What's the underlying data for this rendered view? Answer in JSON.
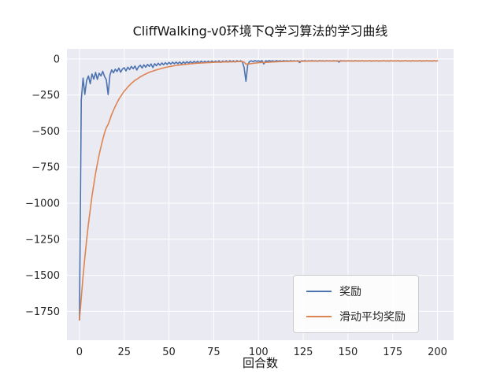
{
  "chart": {
    "title": "CliffWalking-v0环境下Q学习算法的学习曲线",
    "xlabel": "回合数"
  },
  "legend": {
    "items": [
      {
        "label": "奖励",
        "color": "#4C72B0"
      },
      {
        "label": "滑动平均奖励",
        "color": "#DD8452"
      }
    ]
  },
  "chart_data": {
    "type": "line",
    "title": "CliffWalking-v0环境下Q学习算法的学习曲线",
    "xlabel": "回合数",
    "ylabel": "",
    "xlim": [
      -7,
      209
    ],
    "ylim": [
      -1950,
      70
    ],
    "xticks": [
      0,
      25,
      50,
      75,
      100,
      125,
      150,
      175,
      200
    ],
    "xtick_labels": [
      "0",
      "25",
      "50",
      "75",
      "100",
      "125",
      "150",
      "175",
      "200"
    ],
    "yticks": [
      0,
      -250,
      -500,
      -750,
      -1000,
      -1250,
      -1500,
      -1750
    ],
    "ytick_labels": [
      "0",
      "−250",
      "−500",
      "−750",
      "−1000",
      "−1250",
      "−1500",
      "−1750"
    ],
    "grid": true,
    "plot_background": "#EAEAF2",
    "grid_color": "#FFFFFF",
    "tick_label_color": "#262626",
    "legend_position": "lower right inside",
    "x_start": 0,
    "x_step": 1,
    "series": [
      {
        "name": "奖励",
        "color": "#4C72B0",
        "values": [
          -1810,
          -286,
          -133,
          -246,
          -150,
          -118,
          -172,
          -104,
          -140,
          -93,
          -142,
          -99,
          -118,
          -86,
          -121,
          -144,
          -247,
          -112,
          -76,
          -96,
          -71,
          -88,
          -64,
          -92,
          -70,
          -61,
          -83,
          -57,
          -74,
          -52,
          -68,
          -49,
          -77,
          -55,
          -44,
          -63,
          -41,
          -58,
          -38,
          -52,
          -35,
          -60,
          -33,
          -47,
          -30,
          -44,
          -28,
          -41,
          -26,
          -38,
          -24,
          -36,
          -23,
          -34,
          -22,
          -33,
          -21,
          -35,
          -20,
          -31,
          -19,
          -29,
          -18,
          -30,
          -17,
          -27,
          -16,
          -28,
          -15,
          -26,
          -16,
          -24,
          -15,
          -25,
          -14,
          -23,
          -15,
          -22,
          -13,
          -24,
          -14,
          -21,
          -13,
          -22,
          -12,
          -20,
          -13,
          -21,
          -12,
          -19,
          -13,
          -20,
          -60,
          -155,
          -40,
          -18,
          -13,
          -19,
          -12,
          -17,
          -13,
          -18,
          -12,
          -35,
          -13,
          -17,
          -12,
          -16,
          -13,
          -18,
          -12,
          -16,
          -13,
          -17,
          -12,
          -15,
          -13,
          -16,
          -12,
          -15,
          -13,
          -16,
          -12,
          -25,
          -13,
          -15,
          -12,
          -16,
          -13,
          -14,
          -12,
          -15,
          -13,
          -16,
          -12,
          -14,
          -13,
          -15,
          -12,
          -14,
          -13,
          -15,
          -12,
          -14,
          -13,
          -22,
          -12,
          -14,
          -13,
          -15,
          -12,
          -14,
          -13,
          -15,
          -12,
          -14,
          -13,
          -14,
          -12,
          -15,
          -13,
          -14,
          -12,
          -15,
          -13,
          -14,
          -12,
          -15,
          -13,
          -14,
          -12,
          -14,
          -13,
          -15,
          -12,
          -14,
          -13,
          -14,
          -12,
          -15,
          -13,
          -14,
          -12,
          -14,
          -13,
          -15,
          -12,
          -14,
          -13,
          -14,
          -12,
          -15,
          -13,
          -14,
          -12,
          -14,
          -13,
          -15,
          -12,
          -14,
          -13
        ]
      },
      {
        "name": "滑动平均奖励",
        "color": "#DD8452",
        "derived": "exponential_moving_average",
        "source": "奖励",
        "alpha": 0.9
      }
    ]
  }
}
